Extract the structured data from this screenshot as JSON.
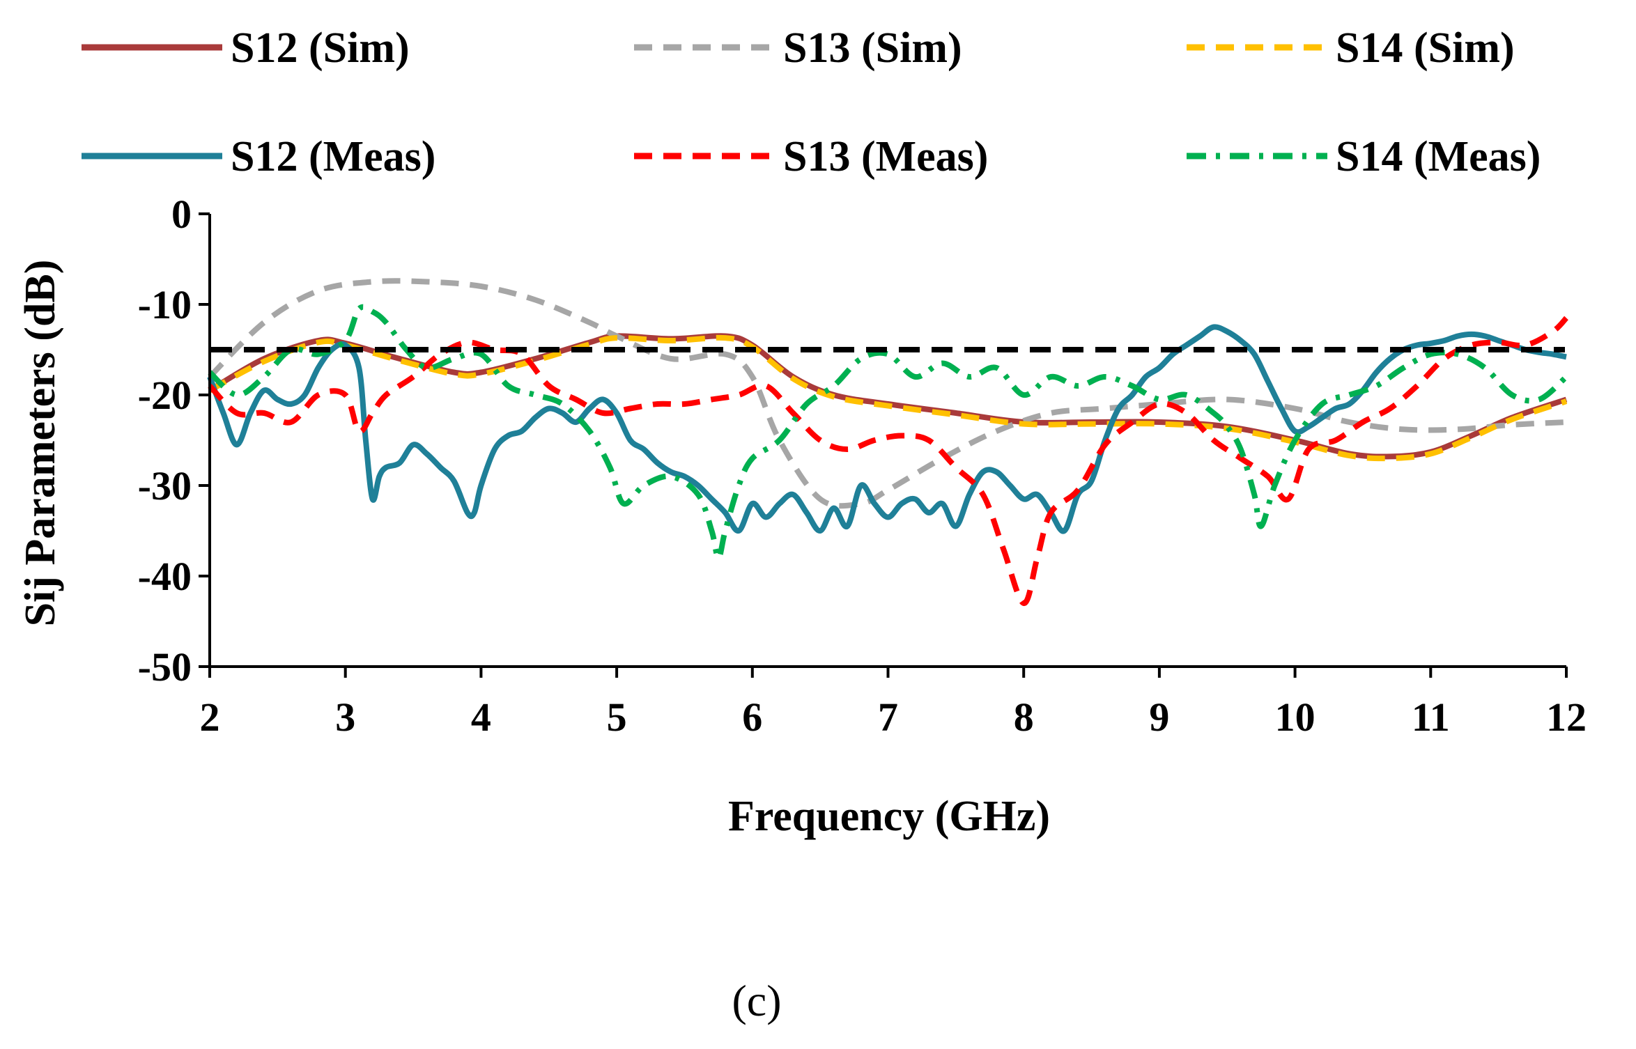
{
  "chart_data": {
    "type": "line",
    "title": "",
    "xlabel": "Frequency (GHz)",
    "ylabel": "Sij Parameters (dB)",
    "xlim": [
      2,
      12
    ],
    "ylim": [
      -50,
      0
    ],
    "xticks": [
      "2",
      "3",
      "4",
      "5",
      "6",
      "7",
      "8",
      "9",
      "10",
      "11",
      "12"
    ],
    "yticks": [
      "0",
      "-10",
      "-20",
      "-30",
      "-40",
      "-50"
    ],
    "grid": false,
    "legend_position": "top",
    "caption": "(c)",
    "reference_line": {
      "y": -15,
      "color": "#000000",
      "style": "dashed"
    },
    "series": [
      {
        "name": "S12 (Sim)",
        "color": "#A93A3A",
        "style": "solid",
        "x": [
          2,
          2.4,
          2.8,
          3.0,
          3.4,
          3.8,
          4.0,
          4.4,
          4.8,
          5.0,
          5.4,
          5.8,
          6.0,
          6.3,
          6.6,
          7.0,
          7.5,
          8.0,
          8.5,
          9.0,
          9.5,
          10.0,
          10.4,
          10.7,
          11.0,
          11.3,
          11.6,
          12.0
        ],
        "values": [
          -19.5,
          -16,
          -14,
          -14.3,
          -16,
          -17.5,
          -17.5,
          -16,
          -14.2,
          -13.5,
          -13.8,
          -13.5,
          -14.5,
          -18,
          -20,
          -21,
          -22,
          -23,
          -23,
          -23,
          -23.5,
          -25,
          -26.5,
          -26.8,
          -26.3,
          -24.5,
          -22.5,
          -20.5
        ]
      },
      {
        "name": "S13 (Sim)",
        "color": "#A6A6A6",
        "style": "dashed",
        "x": [
          2,
          2.4,
          2.8,
          3.2,
          3.6,
          4.0,
          4.4,
          4.8,
          5.0,
          5.4,
          5.8,
          6.0,
          6.2,
          6.5,
          6.8,
          7.0,
          7.4,
          7.8,
          8.2,
          8.6,
          9.0,
          9.5,
          10.0,
          10.4,
          10.8,
          11.2,
          11.6,
          12.0
        ],
        "values": [
          -18,
          -12,
          -8.5,
          -7.5,
          -7.5,
          -8,
          -9.5,
          -12,
          -13.5,
          -16,
          -15.5,
          -18,
          -25,
          -31.5,
          -32,
          -30.5,
          -27,
          -24,
          -22,
          -21.5,
          -21,
          -20.5,
          -21.5,
          -23,
          -23.8,
          -23.8,
          -23.3,
          -23
        ]
      },
      {
        "name": "S14 (Sim)",
        "color": "#FFC000",
        "style": "dashed",
        "x": [
          2,
          2.4,
          2.8,
          3.0,
          3.4,
          3.8,
          4.0,
          4.4,
          4.8,
          5.0,
          5.4,
          5.8,
          6.0,
          6.3,
          6.6,
          7.0,
          7.5,
          8.0,
          8.5,
          9.0,
          9.5,
          10.0,
          10.4,
          10.7,
          11.0,
          11.3,
          11.6,
          12.0
        ],
        "values": [
          -19.5,
          -16.3,
          -14.2,
          -14.5,
          -16.2,
          -17.7,
          -17.7,
          -16.2,
          -14.4,
          -13.7,
          -14,
          -13.7,
          -14.7,
          -18.2,
          -20.2,
          -21.2,
          -22.2,
          -23.2,
          -23.2,
          -23.2,
          -23.7,
          -25.2,
          -26.7,
          -27,
          -26.5,
          -24.7,
          -22.7,
          -20.7
        ]
      },
      {
        "name": "S12 (Meas)",
        "color": "#1F8098",
        "style": "solid",
        "x": [
          2,
          2.1,
          2.2,
          2.3,
          2.4,
          2.5,
          2.6,
          2.7,
          2.8,
          2.9,
          3.0,
          3.1,
          3.15,
          3.2,
          3.25,
          3.3,
          3.4,
          3.5,
          3.6,
          3.7,
          3.8,
          3.9,
          3.95,
          4.0,
          4.1,
          4.2,
          4.3,
          4.4,
          4.5,
          4.6,
          4.7,
          4.8,
          4.9,
          5.0,
          5.1,
          5.2,
          5.3,
          5.4,
          5.5,
          5.6,
          5.7,
          5.8,
          5.9,
          6.0,
          6.1,
          6.2,
          6.3,
          6.4,
          6.5,
          6.6,
          6.7,
          6.8,
          6.9,
          7.0,
          7.1,
          7.2,
          7.3,
          7.4,
          7.5,
          7.6,
          7.7,
          7.8,
          7.9,
          8.0,
          8.1,
          8.2,
          8.3,
          8.4,
          8.5,
          8.6,
          8.7,
          8.8,
          8.9,
          9.0,
          9.1,
          9.2,
          9.3,
          9.4,
          9.5,
          9.6,
          9.7,
          9.8,
          9.9,
          10.0,
          10.1,
          10.2,
          10.3,
          10.4,
          10.5,
          10.6,
          10.7,
          10.8,
          10.9,
          11.0,
          11.1,
          11.2,
          11.3,
          11.4,
          11.5,
          11.6,
          11.7,
          11.8,
          11.9,
          12.0
        ],
        "values": [
          -18,
          -22,
          -25.5,
          -22,
          -19.5,
          -20.5,
          -21,
          -20,
          -17,
          -15,
          -14.5,
          -17,
          -25,
          -31.5,
          -29,
          -28,
          -27.5,
          -25.5,
          -26.5,
          -28,
          -29.5,
          -33,
          -33,
          -30,
          -26,
          -24.5,
          -24,
          -22.5,
          -21.5,
          -22,
          -23,
          -21.5,
          -20.5,
          -22,
          -25,
          -26,
          -27.5,
          -28.5,
          -29,
          -30,
          -31.5,
          -33,
          -35,
          -32,
          -33.5,
          -32,
          -31,
          -33,
          -35,
          -32.5,
          -34.5,
          -30,
          -32,
          -33.5,
          -32,
          -31.5,
          -33,
          -32,
          -34.5,
          -31,
          -28.5,
          -28.5,
          -30,
          -31.5,
          -31,
          -33,
          -35,
          -31,
          -29.5,
          -25,
          -21.5,
          -20,
          -18,
          -17,
          -15.5,
          -14.5,
          -13.5,
          -12.5,
          -13,
          -14,
          -15.5,
          -18.5,
          -21.5,
          -24,
          -23.5,
          -22.5,
          -21.5,
          -21,
          -19.5,
          -17.5,
          -16,
          -15,
          -14.5,
          -14.3,
          -14,
          -13.5,
          -13.3,
          -13.5,
          -14,
          -14.5,
          -15,
          -15.3,
          -15.5,
          -15.8
        ]
      },
      {
        "name": "S13 (Meas)",
        "color": "#FF0000",
        "style": "dashed",
        "x": [
          2,
          2.2,
          2.4,
          2.6,
          2.8,
          3.0,
          3.1,
          3.2,
          3.3,
          3.5,
          3.7,
          3.9,
          4.1,
          4.3,
          4.5,
          4.7,
          4.9,
          5.1,
          5.3,
          5.5,
          5.7,
          5.9,
          6.1,
          6.3,
          6.5,
          6.7,
          6.9,
          7.1,
          7.3,
          7.5,
          7.7,
          7.85,
          8.0,
          8.1,
          8.2,
          8.4,
          8.6,
          8.8,
          9.0,
          9.2,
          9.4,
          9.6,
          9.8,
          9.95,
          10.1,
          10.3,
          10.5,
          10.7,
          10.9,
          11.1,
          11.3,
          11.5,
          11.7,
          11.9,
          12.0
        ],
        "values": [
          -19,
          -22,
          -22,
          -23,
          -20,
          -20,
          -24,
          -22,
          -20,
          -18,
          -15.5,
          -14.2,
          -15,
          -15.5,
          -19,
          -20.5,
          -22,
          -21.5,
          -21,
          -21,
          -20.5,
          -20,
          -19,
          -22,
          -25,
          -26,
          -25,
          -24.5,
          -25,
          -28,
          -31,
          -37,
          -43,
          -38,
          -33,
          -30.5,
          -25.5,
          -23,
          -21,
          -22,
          -25,
          -27,
          -29,
          -31.5,
          -26,
          -25,
          -23,
          -21.5,
          -19,
          -16,
          -14.5,
          -14.2,
          -14.5,
          -13,
          -11.5
        ]
      },
      {
        "name": "S14 (Meas)",
        "color": "#00B050",
        "style": "dashdot",
        "x": [
          2,
          2.2,
          2.4,
          2.6,
          2.8,
          3.0,
          3.1,
          3.2,
          3.3,
          3.45,
          3.6,
          3.8,
          4.0,
          4.2,
          4.4,
          4.6,
          4.8,
          4.95,
          5.05,
          5.2,
          5.4,
          5.6,
          5.7,
          5.75,
          5.8,
          5.9,
          6.0,
          6.2,
          6.4,
          6.6,
          6.8,
          7.0,
          7.2,
          7.4,
          7.6,
          7.8,
          8.0,
          8.2,
          8.4,
          8.6,
          8.8,
          9.0,
          9.2,
          9.4,
          9.5,
          9.6,
          9.7,
          9.75,
          9.85,
          10.0,
          10.2,
          10.4,
          10.6,
          10.8,
          11.0,
          11.2,
          11.4,
          11.6,
          11.8,
          12.0
        ],
        "values": [
          -17.5,
          -20,
          -18,
          -15,
          -15.5,
          -14,
          -10.5,
          -10.8,
          -12,
          -15,
          -17,
          -16,
          -15.5,
          -19,
          -20,
          -21,
          -24,
          -28,
          -32,
          -30,
          -29,
          -31,
          -35,
          -38,
          -35,
          -30,
          -27,
          -25,
          -21,
          -19,
          -16,
          -15.5,
          -18,
          -16.5,
          -18,
          -17,
          -20,
          -18,
          -19,
          -18,
          -19,
          -20.5,
          -20,
          -22,
          -23.5,
          -26,
          -31,
          -34.5,
          -30,
          -25,
          -21,
          -20,
          -19,
          -17,
          -15.5,
          -15.5,
          -17,
          -20,
          -20.5,
          -18
        ]
      }
    ]
  }
}
